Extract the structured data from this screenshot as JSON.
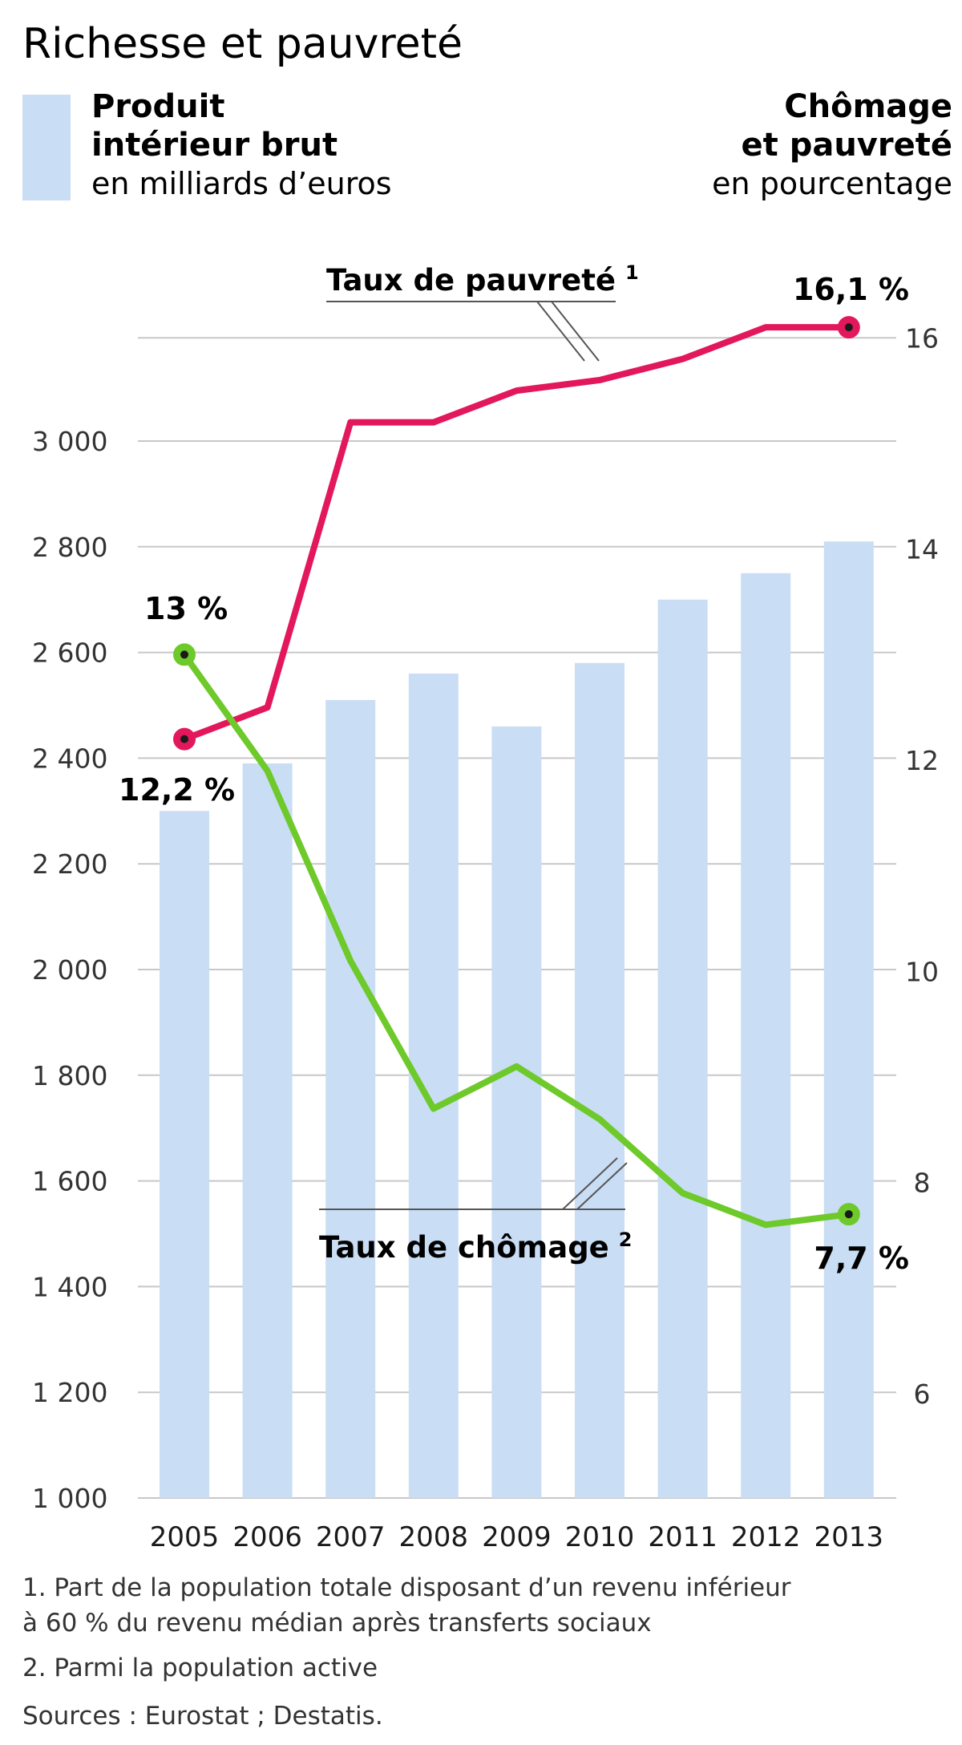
{
  "colors": {
    "bar": "#c9ddf4",
    "poverty": "#e3175b",
    "unemployment": "#6ec92a",
    "grid": "#c8c8c8",
    "point": "#1a1a1a"
  },
  "chart_data": {
    "type": "bar",
    "title": "Richesse et pauvreté",
    "legend": {
      "bars": {
        "line1": "Produit",
        "line2": "intérieur brut",
        "line3": "en milliards d’euros"
      },
      "right_axis": {
        "line1": "Chômage",
        "line2": "et pauvreté",
        "line3": "en pourcentage"
      }
    },
    "categories": [
      "2005",
      "2006",
      "2007",
      "2008",
      "2009",
      "2010",
      "2011",
      "2012",
      "2013"
    ],
    "left_axis": {
      "ylim": [
        1000,
        3200
      ],
      "ticks": [
        1000,
        1200,
        1400,
        1600,
        1800,
        2000,
        2200,
        2400,
        2600,
        2800,
        3000
      ],
      "tick_labels": [
        "1 000",
        "1 200",
        "1 400",
        "1 600",
        "1 800",
        "2 000",
        "2 200",
        "2 400",
        "2 600",
        "2 800",
        "3 000"
      ]
    },
    "right_axis": {
      "ylim": [
        5,
        16.6
      ],
      "ticks": [
        6,
        8,
        10,
        12,
        14,
        16
      ],
      "tick_labels": [
        "6",
        "8",
        "10",
        "12",
        "14",
        "16"
      ]
    },
    "bars": {
      "name": "Produit intérieur brut",
      "values": [
        2300,
        2390,
        2510,
        2560,
        2460,
        2580,
        2700,
        2750,
        2810
      ]
    },
    "series": [
      {
        "name": "Taux de pauvreté",
        "footnote_mark": "1",
        "axis": "right",
        "values": [
          12.2,
          12.5,
          15.2,
          15.2,
          15.5,
          15.6,
          15.8,
          16.1,
          16.1
        ],
        "start_label": "12,2 %",
        "end_label": "16,1 %"
      },
      {
        "name": "Taux de chômage",
        "footnote_mark": "2",
        "axis": "right",
        "values": [
          13.0,
          11.9,
          10.1,
          8.7,
          9.1,
          8.6,
          7.9,
          7.6,
          7.7
        ],
        "start_label": "13 %",
        "end_label": "7,7 %"
      }
    ],
    "footnotes": [
      "1. Part de la population totale disposant d’un revenu inférieur",
      "à 60 % du revenu médian après transferts sociaux",
      "2. Parmi la population active"
    ],
    "sources": "Sources : Eurostat ; Destatis."
  }
}
